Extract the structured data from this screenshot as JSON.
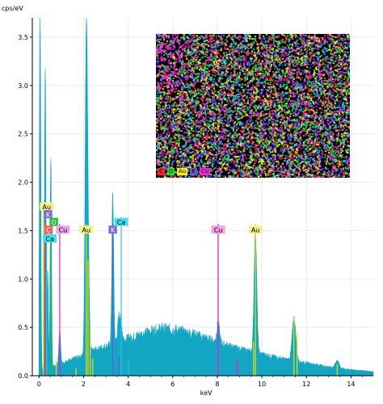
{
  "chart_data": {
    "type": "area",
    "ylabel": "cps/eV",
    "xlabel": "keV",
    "xlim": [
      -0.3,
      15
    ],
    "ylim": [
      0,
      3.7
    ],
    "x_ticks": [
      0,
      2,
      4,
      6,
      8,
      10,
      12,
      14
    ],
    "y_ticks": [
      0.0,
      0.5,
      1.0,
      1.5,
      2.0,
      2.5,
      3.0,
      3.5
    ],
    "grid": true,
    "fill_color": "#12a6c4",
    "background_color": "#ffffff",
    "spectrum": {
      "background": [
        [
          0.0,
          0.02
        ],
        [
          0.3,
          0.08
        ],
        [
          1.0,
          0.12
        ],
        [
          2.0,
          0.22
        ],
        [
          3.0,
          0.3
        ],
        [
          4.0,
          0.38
        ],
        [
          5.0,
          0.45
        ],
        [
          5.5,
          0.48
        ],
        [
          6.0,
          0.47
        ],
        [
          7.0,
          0.42
        ],
        [
          8.0,
          0.34
        ],
        [
          9.0,
          0.27
        ],
        [
          10.0,
          0.22
        ],
        [
          11.0,
          0.17
        ],
        [
          12.0,
          0.13
        ],
        [
          13.0,
          0.09
        ],
        [
          14.0,
          0.06
        ],
        [
          15.0,
          0.04
        ]
      ],
      "peaks": [
        {
          "center": 0.05,
          "height": 3.7,
          "width": 0.03
        },
        {
          "center": 0.28,
          "height": 3.1,
          "width": 0.03
        },
        {
          "center": 0.39,
          "height": 1.0,
          "width": 0.03
        },
        {
          "center": 0.53,
          "height": 2.15,
          "width": 0.03
        },
        {
          "center": 0.93,
          "height": 0.35,
          "width": 0.04
        },
        {
          "center": 2.12,
          "height": 3.15,
          "width": 0.05
        },
        {
          "center": 2.2,
          "height": 1.05,
          "width": 0.05
        },
        {
          "center": 3.31,
          "height": 1.55,
          "width": 0.04
        },
        {
          "center": 3.59,
          "height": 0.25,
          "width": 0.06
        },
        {
          "center": 3.69,
          "height": 0.15,
          "width": 0.05
        },
        {
          "center": 8.04,
          "height": 0.2,
          "width": 0.06
        },
        {
          "center": 9.71,
          "height": 1.27,
          "width": 0.06
        },
        {
          "center": 11.44,
          "height": 0.45,
          "width": 0.08
        },
        {
          "center": 13.38,
          "height": 0.08,
          "width": 0.08
        }
      ]
    },
    "element_markers": [
      {
        "label": "Au",
        "x": 0.2,
        "height": 1.82,
        "tag_y": 1.75,
        "color": "#f4f18c",
        "line_color": "#e8e000",
        "text_color": "#000000"
      },
      {
        "label": "K",
        "x": 0.26,
        "height": 1.72,
        "tag_y": 1.67,
        "color": "#7b6ad8",
        "line_color": "#6b5bd0",
        "text_color": "#ffffff"
      },
      {
        "label": "O",
        "x": 0.52,
        "height": 1.65,
        "tag_y": 1.59,
        "color": "#22c040",
        "line_color": "#22c040",
        "text_color": "#ffffff"
      },
      {
        "label": "C",
        "x": 0.28,
        "height": 1.57,
        "tag_y": 1.51,
        "color": "#f06060",
        "line_color": "#e04040",
        "text_color": "#ffffff"
      },
      {
        "label": "Cu",
        "x": 0.93,
        "height": 1.57,
        "tag_y": 1.51,
        "color": "#f0a0e8",
        "line_color": "#e020d0",
        "text_color": "#000000"
      },
      {
        "label": "Ca",
        "x": 0.34,
        "height": 1.48,
        "tag_y": 1.42,
        "color": "#40e0f0",
        "line_color": "#20c8e0",
        "text_color": "#000000"
      },
      {
        "label": "Au",
        "x": 2.12,
        "height": 1.57,
        "tag_y": 1.51,
        "color": "#f4f18c",
        "line_color": "#e8e000",
        "text_color": "#000000"
      },
      {
        "label": "K",
        "x": 3.31,
        "height": 1.57,
        "tag_y": 1.51,
        "color": "#7b6ad8",
        "line_color": "#6b5bd0",
        "text_color": "#ffffff"
      },
      {
        "label": "Ca",
        "x": 3.69,
        "height": 1.64,
        "tag_y": 1.59,
        "color": "#40e0f0",
        "line_color": "#20c8e0",
        "text_color": "#000000"
      },
      {
        "label": "Cu",
        "x": 8.04,
        "height": 1.57,
        "tag_y": 1.51,
        "color": "#f0a0e8",
        "line_color": "#e020d0",
        "text_color": "#000000"
      },
      {
        "label": "Au",
        "x": 9.71,
        "height": 1.57,
        "tag_y": 1.51,
        "color": "#f4f18c",
        "line_color": "#e8e000",
        "text_color": "#000000"
      }
    ],
    "minor_lines": [
      {
        "x": 0.26,
        "height": 0.25,
        "color": "#6b5bd0"
      },
      {
        "x": 0.34,
        "height": 0.3,
        "color": "#20c8e0"
      },
      {
        "x": 0.93,
        "height": 0.35,
        "color": "#e020d0"
      },
      {
        "x": 0.77,
        "height": 0.15,
        "color": "#e8e000"
      },
      {
        "x": 2.2,
        "height": 1.2,
        "color": "#e8e000"
      },
      {
        "x": 2.3,
        "height": 0.5,
        "color": "#e8e000"
      },
      {
        "x": 2.41,
        "height": 0.18,
        "color": "#e8e000"
      },
      {
        "x": 3.59,
        "height": 0.2,
        "color": "#6b5bd0"
      },
      {
        "x": 4.01,
        "height": 0.15,
        "color": "#20c8e0"
      },
      {
        "x": 8.04,
        "height": 0.2,
        "color": "#e020d0"
      },
      {
        "x": 8.9,
        "height": 0.18,
        "color": "#e020d0"
      },
      {
        "x": 9.63,
        "height": 0.35,
        "color": "#e8e000"
      },
      {
        "x": 11.44,
        "height": 0.6,
        "color": "#e8e000"
      },
      {
        "x": 11.58,
        "height": 0.45,
        "color": "#e8e000"
      },
      {
        "x": 13.38,
        "height": 0.12,
        "color": "#e8e000"
      },
      {
        "x": 1.66,
        "height": 0.08,
        "color": "#e8e000"
      }
    ],
    "element_map": {
      "legend": [
        {
          "label": "C",
          "color": "#ff2020"
        },
        {
          "label": "O",
          "color": "#20e020"
        },
        {
          "label": "Au",
          "color": "#f0f020"
        },
        {
          "label": "K",
          "color": "#6b5bd0"
        },
        {
          "label": "Cu",
          "color": "#ff20e0"
        }
      ],
      "colors": [
        "#ff2020",
        "#20e020",
        "#f0f020",
        "#20c8e0",
        "#ff20e0",
        "#2040ff"
      ]
    }
  }
}
